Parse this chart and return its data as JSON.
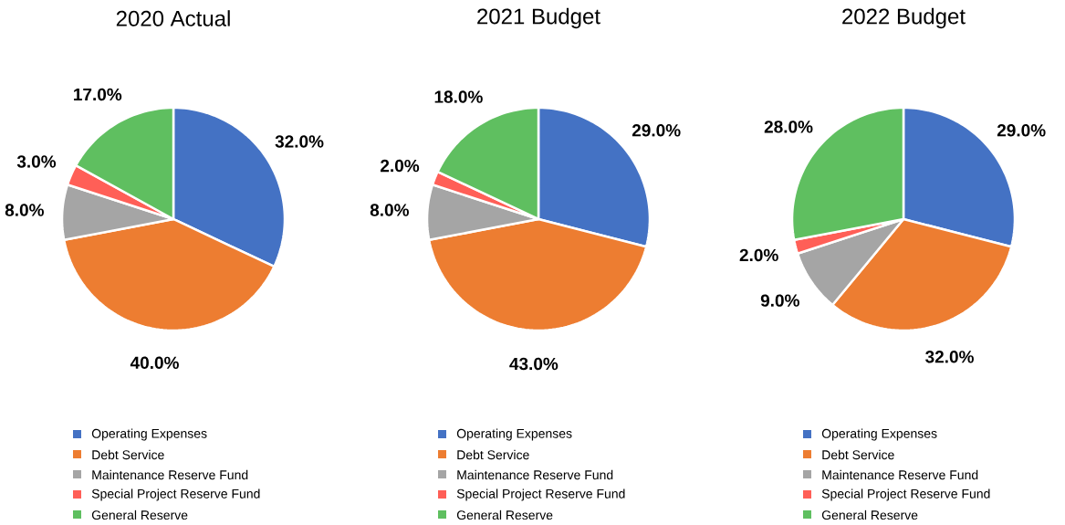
{
  "chart_data": [
    {
      "type": "pie",
      "title": "2020 Actual",
      "categories": [
        "Operating Expenses",
        "Debt Service",
        "Maintenance Reserve Fund",
        "Special Project Reserve Fund",
        "General Reserve"
      ],
      "values": [
        32,
        40,
        8,
        3,
        17
      ],
      "value_labels": [
        "32.0%",
        "40.0%",
        "8.0%",
        "3.0%",
        "17.0%"
      ],
      "colors": [
        "#4472c4",
        "#ed7d31",
        "#a5a5a5",
        "#ff5f57",
        "#5fbf60"
      ],
      "legend": "bottom"
    },
    {
      "type": "pie",
      "title": "2021 Budget",
      "categories": [
        "Operating Expenses",
        "Debt Service",
        "Maintenance Reserve Fund",
        "Special Project Reserve Fund",
        "General Reserve"
      ],
      "values": [
        29,
        43,
        8,
        2,
        18
      ],
      "value_labels": [
        "29.0%",
        "43.0%",
        "8.0%",
        "2.0%",
        "18.0%"
      ],
      "colors": [
        "#4472c4",
        "#ed7d31",
        "#a5a5a5",
        "#ff5f57",
        "#5fbf60"
      ],
      "legend": "bottom"
    },
    {
      "type": "pie",
      "title": "2022 Budget",
      "categories": [
        "Operating Expenses",
        "Debt Service",
        "Maintenance Reserve Fund",
        "Special Project Reserve Fund",
        "General Reserve"
      ],
      "values": [
        29,
        32,
        9,
        2,
        28
      ],
      "value_labels": [
        "29.0%",
        "32.0%",
        "9.0%",
        "2.0%",
        "28.0%"
      ],
      "colors": [
        "#4472c4",
        "#ed7d31",
        "#a5a5a5",
        "#ff5f57",
        "#5fbf60"
      ],
      "legend": "bottom"
    }
  ]
}
